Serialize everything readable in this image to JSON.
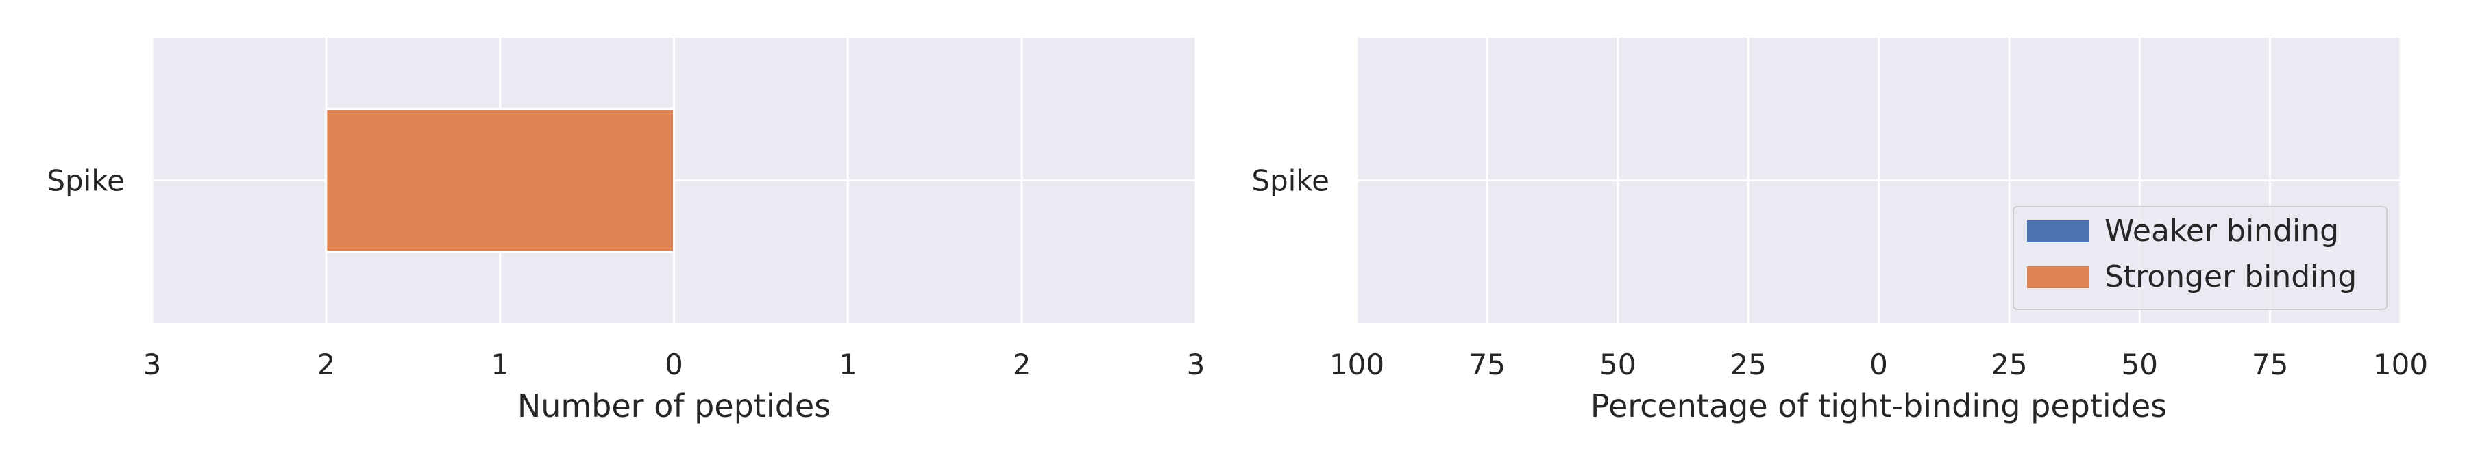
{
  "chart_data": [
    {
      "type": "bar",
      "orientation": "horizontal",
      "diverging": true,
      "categories": [
        "Spike"
      ],
      "series": [
        {
          "name": "Weaker binding",
          "values": [
            0
          ]
        },
        {
          "name": "Stronger binding",
          "values": [
            -2
          ]
        }
      ],
      "xlabel": "Number of peptides",
      "xlim": [
        -3,
        3
      ],
      "xticks": [
        -3,
        -2,
        -1,
        0,
        1,
        2,
        3
      ],
      "xtick_labels": [
        "3",
        "2",
        "1",
        "0",
        "1",
        "2",
        "3"
      ],
      "grid": true,
      "legend": "none"
    },
    {
      "type": "bar",
      "orientation": "horizontal",
      "diverging": true,
      "categories": [
        "Spike"
      ],
      "series": [
        {
          "name": "Weaker binding",
          "values": [
            0
          ]
        },
        {
          "name": "Stronger binding",
          "values": [
            0
          ]
        }
      ],
      "xlabel": "Percentage of tight-binding peptides",
      "xlim": [
        -100,
        100
      ],
      "xticks": [
        -100,
        -75,
        -50,
        -25,
        0,
        25,
        50,
        75,
        100
      ],
      "xtick_labels": [
        "100",
        "75",
        "50",
        "25",
        "0",
        "25",
        "50",
        "75",
        "100"
      ],
      "grid": true,
      "legend": "lower-right"
    }
  ],
  "legend": {
    "entries": [
      "Weaker binding",
      "Stronger binding"
    ]
  },
  "colors": {
    "weaker": "#4c72b0",
    "stronger": "#dd8452",
    "axes_bg": "#eaeaf2",
    "grid": "#ffffff"
  }
}
